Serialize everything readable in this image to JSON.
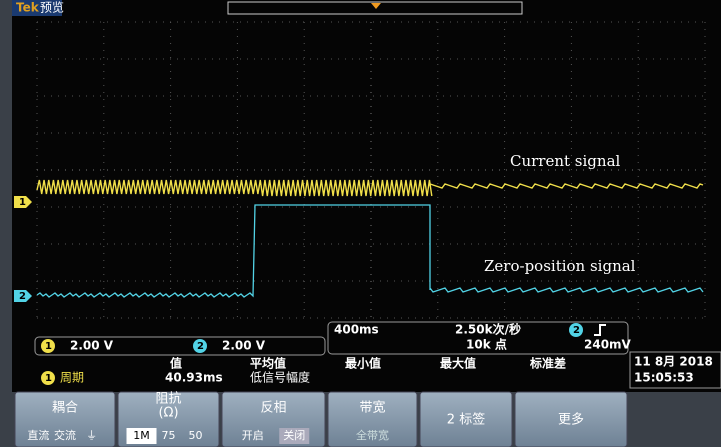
{
  "header": {
    "brand": "Tek",
    "mode": "预览"
  },
  "annotations": {
    "current": "Current signal",
    "zero": "Zero-position signal"
  },
  "channels": [
    {
      "marker": "1",
      "scale": "2.00 V",
      "color": "#f0df4a"
    },
    {
      "marker": "2",
      "scale": "2.00 V",
      "color": "#52d3e6"
    }
  ],
  "timebase": {
    "scale": "400ms",
    "rate": "2.50k次/秒",
    "points": "10k 点",
    "trigger_source": "2",
    "trigger_level": "240mV"
  },
  "measurements": {
    "headers": [
      "值",
      "平均值",
      "最小值",
      "最大值",
      "标准差"
    ],
    "rows": [
      {
        "source": "1",
        "name": "周期",
        "value": "40.93ms",
        "extra": "低信号幅度"
      }
    ]
  },
  "datetime": {
    "date": "11 8月 2018",
    "time": "15:05:53"
  },
  "menu": [
    {
      "title": "耦合",
      "options": [
        "直流",
        "交流",
        "⏚"
      ]
    },
    {
      "title": "阻抗",
      "subtitle": "(Ω)",
      "options": [
        "1M",
        "75",
        "50"
      ]
    },
    {
      "title": "反相",
      "options": [
        "开启",
        "关闭"
      ]
    },
    {
      "title": "带宽",
      "options": [
        "全带宽"
      ]
    },
    {
      "title": "2 标签"
    },
    {
      "title": "更多"
    }
  ]
}
